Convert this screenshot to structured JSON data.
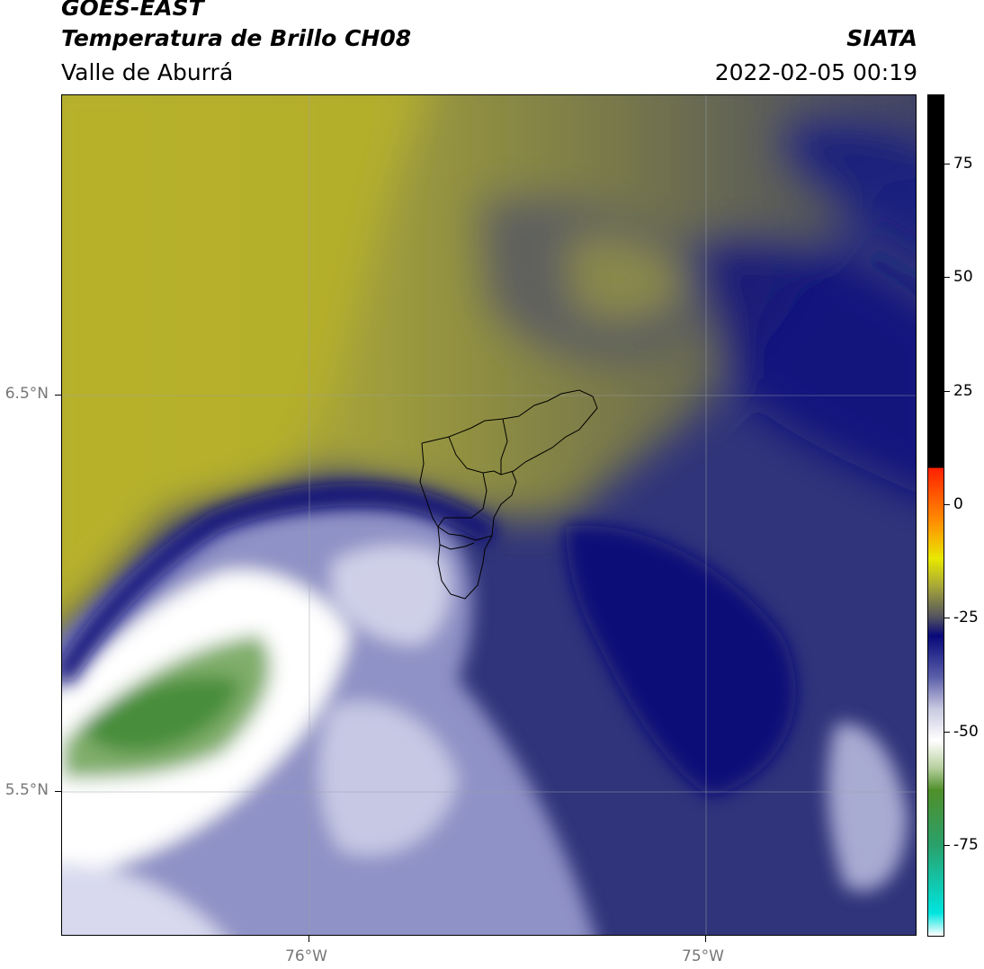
{
  "header": {
    "satellite": "GOES-EAST",
    "product": "Temperatura de Brillo CH08",
    "region": "Valle de Aburrá",
    "organization": "SIATA",
    "timestamp": "2022-02-05 00:19"
  },
  "axes": {
    "lat_labels": [
      "6.5°N",
      "5.5°N"
    ],
    "lon_labels": [
      "76°W",
      "75°W"
    ]
  },
  "colorbar": {
    "ticks": [
      "75",
      "50",
      "25",
      "0",
      "-25",
      "-50",
      "-75"
    ],
    "range": [
      -95,
      90
    ],
    "stops": [
      {
        "value": -95,
        "color": "#ffffff"
      },
      {
        "value": -90,
        "color": "#00e5e0"
      },
      {
        "value": -75,
        "color": "#2aa06a"
      },
      {
        "value": -63,
        "color": "#4f8f2a"
      },
      {
        "value": -58,
        "color": "#b8d0a0"
      },
      {
        "value": -52,
        "color": "#ffffff"
      },
      {
        "value": -45,
        "color": "#c8c8e0"
      },
      {
        "value": -38,
        "color": "#5a5ea8"
      },
      {
        "value": -29,
        "color": "#08087a"
      },
      {
        "value": -25,
        "color": "#505060"
      },
      {
        "value": -18,
        "color": "#a8a838"
      },
      {
        "value": -12,
        "color": "#e8e800"
      },
      {
        "value": -4,
        "color": "#ff9000"
      },
      {
        "value": 8,
        "color": "#ff2000"
      },
      {
        "value": 8.01,
        "color": "#000000"
      },
      {
        "value": 90,
        "color": "#000000"
      }
    ]
  }
}
